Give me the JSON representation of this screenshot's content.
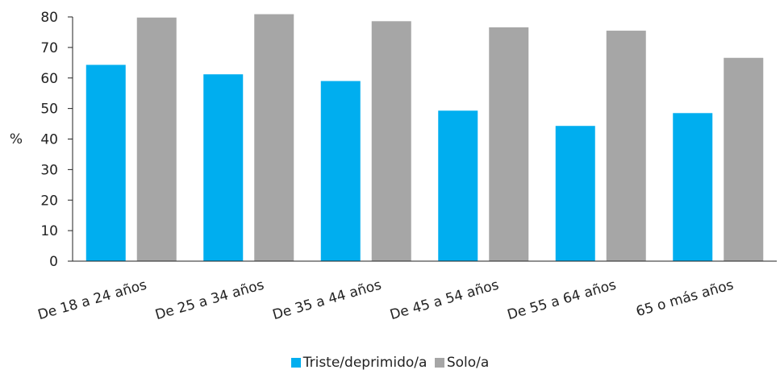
{
  "chart_data": {
    "type": "bar",
    "categories": [
      "De 18 a 24 años",
      "De 25 a 34 años",
      "De 35 a 44 años",
      "De 45 a 54 años",
      "De 55 a 64 años",
      "65 o más años"
    ],
    "series": [
      {
        "name": "Triste/deprimido/a",
        "color": "#00AEEF",
        "values": [
          64.3,
          61.2,
          59,
          49.3,
          44.3,
          48.5
        ]
      },
      {
        "name": "Solo/a",
        "color": "#A6A6A6",
        "values": [
          79.8,
          80.9,
          78.6,
          76.6,
          75.5,
          66.6
        ]
      }
    ],
    "ylabel": "%",
    "ylim": [
      0,
      80
    ],
    "yticks": [
      "0",
      "10",
      "20",
      "30",
      "40",
      "50",
      "60",
      "70",
      "80"
    ],
    "grid": false,
    "legend": "bottom"
  }
}
